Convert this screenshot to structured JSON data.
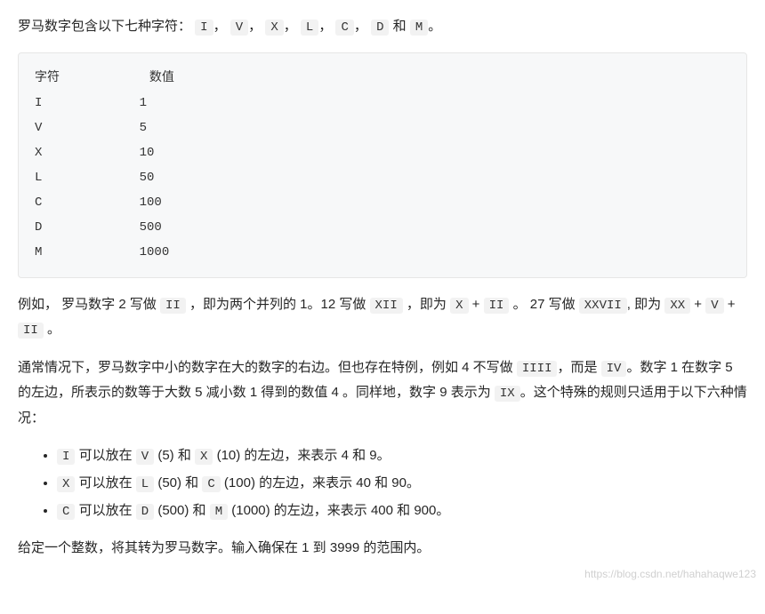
{
  "intro": {
    "prefix": "罗马数字包含以下七种字符：",
    "symbols": [
      "I",
      "V",
      "X",
      "L",
      "C",
      "D",
      "M"
    ],
    "sep": "，",
    "lastSep": " 和 ",
    "period": "。"
  },
  "table": {
    "header": {
      "col1": "字符",
      "col2": "数值"
    },
    "rows": [
      {
        "sym": "I",
        "val": "1"
      },
      {
        "sym": "V",
        "val": "5"
      },
      {
        "sym": "X",
        "val": "10"
      },
      {
        "sym": "L",
        "val": "50"
      },
      {
        "sym": "C",
        "val": "100"
      },
      {
        "sym": "D",
        "val": "500"
      },
      {
        "sym": "M",
        "val": "1000"
      }
    ]
  },
  "example": {
    "t1": "例如， 罗马数字 2 写做 ",
    "c1": "II",
    "t2": " ，即为两个并列的 1。12 写做 ",
    "c2": "XII",
    "t3": " ，即为 ",
    "c3": "X",
    "t4": " + ",
    "c4": "II",
    "t5": " 。 27 写做 ",
    "c5": "XXVII",
    "t6": ", 即为 ",
    "c6": "XX",
    "t7": " + ",
    "c7": "V",
    "t8": " + ",
    "c8": "II",
    "t9": " 。"
  },
  "rule": {
    "t1": "通常情况下，罗马数字中小的数字在大的数字的右边。但也存在特例，例如 4 不写做 ",
    "c1": "IIII",
    "t2": "，而是 ",
    "c2": "IV",
    "t3": "。数字 1 在数字 5 的左边，所表示的数等于大数 5 减小数 1 得到的数值 4 。同样地，数字 9 表示为 ",
    "c3": "IX",
    "t4": "。这个特殊的规则只适用于以下六种情况："
  },
  "bullets": [
    {
      "c1": "I",
      "t1": " 可以放在 ",
      "c2": "V",
      "t2": " (5) 和 ",
      "c3": "X",
      "t3": " (10) 的左边，来表示 4 和 9。"
    },
    {
      "c1": "X",
      "t1": " 可以放在 ",
      "c2": "L",
      "t2": " (50) 和 ",
      "c3": "C",
      "t3": " (100) 的左边，来表示 40 和 90。"
    },
    {
      "c1": "C",
      "t1": " 可以放在 ",
      "c2": "D",
      "t2": " (500) 和 ",
      "c3": "M",
      "t3": " (1000) 的左边，来表示 400 和 900。"
    }
  ],
  "finalLine": "给定一个整数，将其转为罗马数字。输入确保在 1 到 3999 的范围内。",
  "watermark": "https://blog.csdn.net/hahahaqwe123",
  "style": {
    "codeBg": "#f2f2f2",
    "blockBg": "#f7f8f9",
    "blockBorder": "#e6e6e6",
    "textColor": "#262626",
    "col1Width": 14
  }
}
